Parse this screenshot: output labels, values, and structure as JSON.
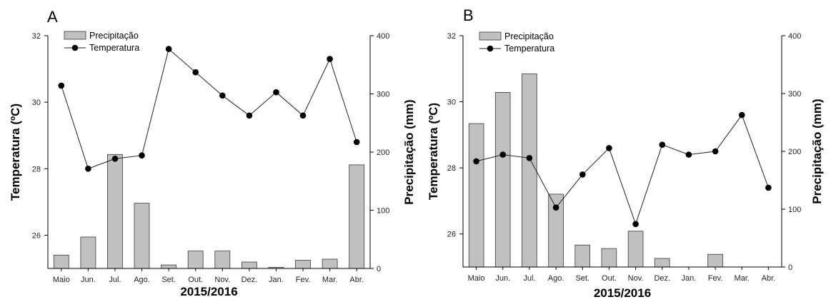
{
  "chart_data": [
    {
      "type": "bar+line",
      "panel_label": "A",
      "categories": [
        "Maio",
        "Jun.",
        "Jul.",
        "Ago.",
        "Set.",
        "Out.",
        "Nov.",
        "Dez.",
        "Jan.",
        "Fev.",
        "Mar.",
        "Abr."
      ],
      "xlabel": "2015/2016",
      "ylabel_left": "Temperatura (ºC)",
      "ylabel_right": "Precipitação (mm)",
      "ylim_left": [
        25,
        32
      ],
      "yticks_left": [
        "26",
        "28",
        "30",
        "32"
      ],
      "ylim_right": [
        0,
        400
      ],
      "yticks_right": [
        "0",
        "100",
        "200",
        "300",
        "400"
      ],
      "legend": [
        "Precipitação",
        "Temperatura"
      ],
      "legend_position": "top-left",
      "series": [
        {
          "name": "Precipitação",
          "kind": "bar",
          "axis": "right",
          "values": [
            23,
            54,
            196,
            112,
            6,
            30,
            30,
            11,
            2,
            14,
            16,
            178
          ]
        },
        {
          "name": "Temperatura",
          "kind": "line",
          "axis": "left",
          "values": [
            30.5,
            28.0,
            28.3,
            28.4,
            31.6,
            30.9,
            30.2,
            29.6,
            30.3,
            29.6,
            31.3,
            28.8
          ]
        }
      ]
    },
    {
      "type": "bar+line",
      "panel_label": "B",
      "categories": [
        "Maio",
        "Jun.",
        "Jul.",
        "Ago.",
        "Set.",
        "Out.",
        "Nov.",
        "Dez.",
        "Jan.",
        "Fev.",
        "Mar.",
        "Abr."
      ],
      "xlabel": "2015/2016",
      "ylabel_left": "Temperatura (ºC)",
      "ylabel_right": "Precipitação (mm)",
      "ylim_left": [
        25,
        32
      ],
      "yticks_left": [
        "26",
        "28",
        "30",
        "32"
      ],
      "ylim_right": [
        0,
        400
      ],
      "yticks_right": [
        "0",
        "100",
        "200",
        "300",
        "400"
      ],
      "legend": [
        "Precipitação",
        "Temperatura"
      ],
      "legend_position": "top-left",
      "series": [
        {
          "name": "Precipitação",
          "kind": "bar",
          "axis": "right",
          "values": [
            248,
            302,
            334,
            126,
            38,
            32,
            62,
            15,
            0,
            22,
            0,
            0
          ]
        },
        {
          "name": "Temperatura",
          "kind": "line",
          "axis": "left",
          "values": [
            28.2,
            28.4,
            28.3,
            26.8,
            27.8,
            28.6,
            26.3,
            28.7,
            28.4,
            28.5,
            29.6,
            27.4
          ]
        }
      ]
    }
  ],
  "colors": {
    "bar_fill": "#c0c0c0",
    "bar_stroke": "#3a3a3a",
    "line": "#222222",
    "marker": "#000000"
  }
}
